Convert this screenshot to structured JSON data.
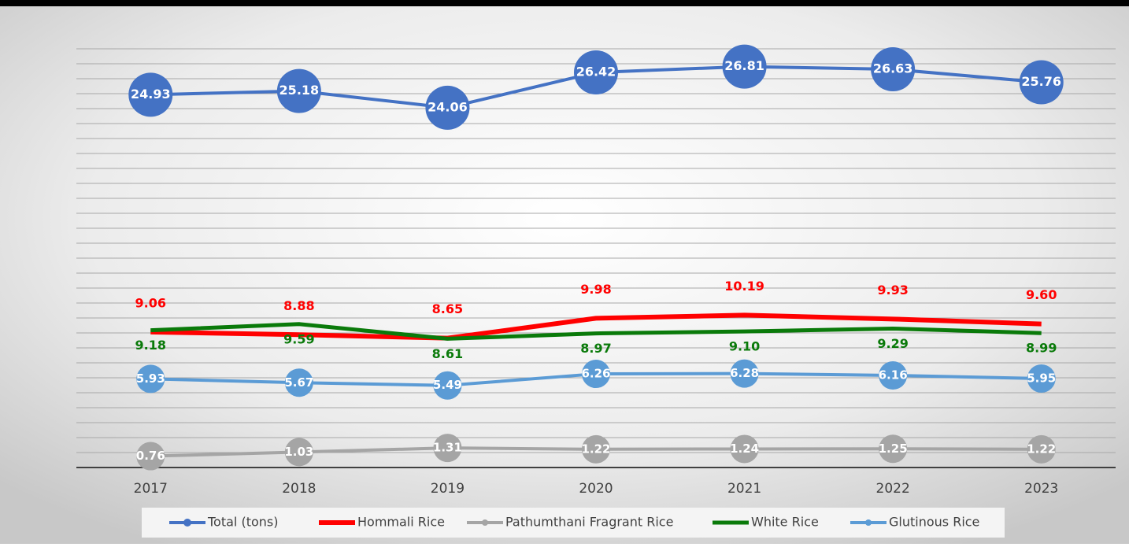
{
  "chart_data": {
    "type": "line",
    "categories": [
      "2017",
      "2018",
      "2019",
      "2020",
      "2021",
      "2022",
      "2023"
    ],
    "series": [
      {
        "name": "Total (tons)",
        "color": "#4472c4",
        "values": [
          24.93,
          25.18,
          24.06,
          26.42,
          26.81,
          26.63,
          25.76
        ]
      },
      {
        "name": "Hommali Rice",
        "color": "#ff0000",
        "values": [
          9.06,
          8.88,
          8.65,
          9.98,
          10.19,
          9.93,
          9.6
        ],
        "value_labels": [
          "9.06",
          "8.88",
          "8.65",
          "9.98",
          "10.19",
          "9.93",
          "9.60"
        ]
      },
      {
        "name": "Pathumthani Fragrant Rice",
        "color": "#a5a5a5",
        "values": [
          0.76,
          1.03,
          1.31,
          1.22,
          1.24,
          1.25,
          1.22
        ]
      },
      {
        "name": "White Rice",
        "color": "#0a7a0a",
        "values": [
          9.18,
          9.59,
          8.61,
          8.97,
          9.1,
          9.29,
          8.99
        ],
        "value_labels": [
          "9.18",
          "9.59",
          "8.61",
          "8.97",
          "9.10",
          "9.29",
          "8.99"
        ]
      },
      {
        "name": "Glutinous Rice",
        "color": "#5b9bd5",
        "values": [
          5.93,
          5.67,
          5.49,
          6.26,
          6.28,
          6.16,
          5.95
        ]
      }
    ],
    "ylim": [
      0,
      28
    ],
    "yticks": [
      0,
      1,
      2,
      3,
      4,
      5,
      6,
      7,
      8,
      9,
      10,
      11,
      12,
      13,
      14,
      15,
      16,
      17,
      18,
      19,
      20,
      21,
      22,
      23,
      24,
      25,
      26,
      27,
      28
    ],
    "grid": true,
    "legend": "bottom"
  }
}
